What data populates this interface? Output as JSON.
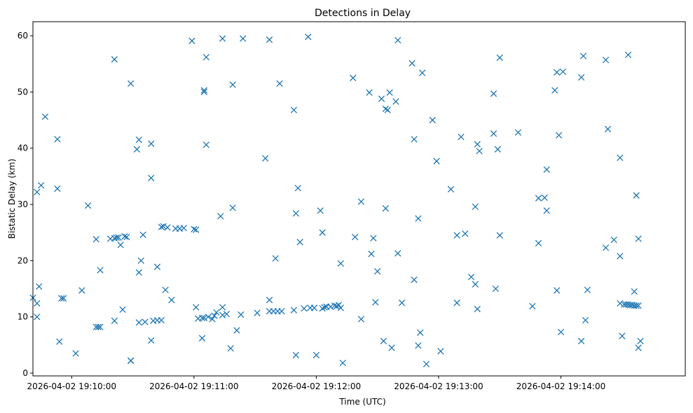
{
  "chart_data": {
    "type": "scatter",
    "title": "Detections in Delay",
    "xlabel": "Time (UTC)",
    "ylabel": "Bistatic Delay (km)",
    "x_ticks": [
      "2026-04-02 19:10:00",
      "2026-04-02 19:11:00",
      "2026-04-02 19:12:00",
      "2026-04-02 19:13:00",
      "2026-04-02 19:14:00"
    ],
    "y_ticks": [
      "0",
      "10",
      "20",
      "30",
      "40",
      "50",
      "60"
    ],
    "xlim": [
      "2026-04-02 19:09:41",
      "2026-04-02 19:15:01"
    ],
    "ylim": [
      -0.5,
      62.5
    ],
    "marker": "x",
    "color": "#1f77b4",
    "grid": false,
    "series": [
      {
        "points": [
          [
            "2026-04-02 19:09:41",
            13.4
          ],
          [
            "2026-04-02 19:09:43",
            32.2
          ],
          [
            "2026-04-02 19:09:43",
            12.4
          ],
          [
            "2026-04-02 19:09:43",
            10.0
          ],
          [
            "2026-04-02 19:09:44",
            15.4
          ],
          [
            "2026-04-02 19:09:45",
            33.4
          ],
          [
            "2026-04-02 19:09:47",
            45.6
          ],
          [
            "2026-04-02 19:09:53",
            41.6
          ],
          [
            "2026-04-02 19:09:53",
            32.8
          ],
          [
            "2026-04-02 19:09:54",
            5.6
          ],
          [
            "2026-04-02 19:09:55",
            13.3
          ],
          [
            "2026-04-02 19:09:56",
            13.3
          ],
          [
            "2026-04-02 19:10:02",
            3.5
          ],
          [
            "2026-04-02 19:10:05",
            14.7
          ],
          [
            "2026-04-02 19:10:08",
            29.8
          ],
          [
            "2026-04-02 19:10:12",
            23.8
          ],
          [
            "2026-04-02 19:10:12",
            8.2
          ],
          [
            "2026-04-02 19:10:13",
            8.2
          ],
          [
            "2026-04-02 19:10:14",
            8.2
          ],
          [
            "2026-04-02 19:10:14",
            18.3
          ],
          [
            "2026-04-02 19:10:19",
            23.9
          ],
          [
            "2026-04-02 19:10:21",
            24.0
          ],
          [
            "2026-04-02 19:10:22",
            24.1
          ],
          [
            "2026-04-02 19:10:23",
            24.1
          ],
          [
            "2026-04-02 19:10:24",
            22.8
          ],
          [
            "2026-04-02 19:10:26",
            24.3
          ],
          [
            "2026-04-02 19:10:27",
            24.2
          ],
          [
            "2026-04-02 19:10:21",
            55.8
          ],
          [
            "2026-04-02 19:10:21",
            9.3
          ],
          [
            "2026-04-02 19:10:25",
            11.3
          ],
          [
            "2026-04-02 19:10:29",
            2.2
          ],
          [
            "2026-04-02 19:10:29",
            2.2
          ],
          [
            "2026-04-02 19:10:29",
            51.5
          ],
          [
            "2026-04-02 19:10:32",
            39.8
          ],
          [
            "2026-04-02 19:10:33",
            41.5
          ],
          [
            "2026-04-02 19:10:33",
            17.9
          ],
          [
            "2026-04-02 19:10:34",
            20.0
          ],
          [
            "2026-04-02 19:10:35",
            24.6
          ],
          [
            "2026-04-02 19:10:33",
            9.0
          ],
          [
            "2026-04-02 19:10:36",
            9.1
          ],
          [
            "2026-04-02 19:10:39",
            40.8
          ],
          [
            "2026-04-02 19:10:39",
            34.7
          ],
          [
            "2026-04-02 19:10:39",
            5.8
          ],
          [
            "2026-04-02 19:10:40",
            9.3
          ],
          [
            "2026-04-02 19:10:42",
            9.4
          ],
          [
            "2026-04-02 19:10:44",
            9.4
          ],
          [
            "2026-04-02 19:10:42",
            18.9
          ],
          [
            "2026-04-02 19:10:44",
            26.0
          ],
          [
            "2026-04-02 19:10:45",
            26.1
          ],
          [
            "2026-04-02 19:10:47",
            25.9
          ],
          [
            "2026-04-02 19:10:46",
            14.8
          ],
          [
            "2026-04-02 19:10:49",
            13.0
          ],
          [
            "2026-04-02 19:10:51",
            25.7
          ],
          [
            "2026-04-02 19:10:53",
            25.7
          ],
          [
            "2026-04-02 19:10:55",
            25.8
          ],
          [
            "2026-04-02 19:10:59",
            59.1
          ],
          [
            "2026-04-02 19:11:00",
            25.6
          ],
          [
            "2026-04-02 19:11:01",
            25.5
          ],
          [
            "2026-04-02 19:11:01",
            11.7
          ],
          [
            "2026-04-02 19:11:02",
            9.7
          ],
          [
            "2026-04-02 19:11:04",
            9.8
          ],
          [
            "2026-04-02 19:11:05",
            9.8
          ],
          [
            "2026-04-02 19:11:04",
            6.2
          ],
          [
            "2026-04-02 19:11:05",
            50.3
          ],
          [
            "2026-04-02 19:11:05",
            50.0
          ],
          [
            "2026-04-02 19:11:06",
            56.2
          ],
          [
            "2026-04-02 19:11:06",
            40.6
          ],
          [
            "2026-04-02 19:11:07",
            10.0
          ],
          [
            "2026-04-02 19:11:09",
            9.6
          ],
          [
            "2026-04-02 19:11:10",
            10.2
          ],
          [
            "2026-04-02 19:11:11",
            10.8
          ],
          [
            "2026-04-02 19:11:13",
            27.9
          ],
          [
            "2026-04-02 19:11:14",
            11.7
          ],
          [
            "2026-04-02 19:11:14",
            10.3
          ],
          [
            "2026-04-02 19:11:16",
            10.5
          ],
          [
            "2026-04-02 19:11:14",
            59.5
          ],
          [
            "2026-04-02 19:11:19",
            51.3
          ],
          [
            "2026-04-02 19:11:19",
            29.4
          ],
          [
            "2026-04-02 19:11:18",
            4.4
          ],
          [
            "2026-04-02 19:11:21",
            7.6
          ],
          [
            "2026-04-02 19:11:23",
            10.4
          ],
          [
            "2026-04-02 19:11:24",
            59.5
          ],
          [
            "2026-04-02 19:11:31",
            10.7
          ],
          [
            "2026-04-02 19:11:35",
            38.2
          ],
          [
            "2026-04-02 19:11:37",
            59.3
          ],
          [
            "2026-04-02 19:11:37",
            13.0
          ],
          [
            "2026-04-02 19:11:37",
            11.0
          ],
          [
            "2026-04-02 19:11:39",
            11.0
          ],
          [
            "2026-04-02 19:11:41",
            11.0
          ],
          [
            "2026-04-02 19:11:40",
            20.4
          ],
          [
            "2026-04-02 19:11:42",
            51.5
          ],
          [
            "2026-04-02 19:11:43",
            11.0
          ],
          [
            "2026-04-02 19:11:49",
            46.8
          ],
          [
            "2026-04-02 19:11:49",
            11.2
          ],
          [
            "2026-04-02 19:11:50",
            28.4
          ],
          [
            "2026-04-02 19:11:50",
            3.2
          ],
          [
            "2026-04-02 19:11:51",
            32.9
          ],
          [
            "2026-04-02 19:11:52",
            23.3
          ],
          [
            "2026-04-02 19:11:54",
            11.5
          ],
          [
            "2026-04-02 19:11:56",
            59.8
          ],
          [
            "2026-04-02 19:11:57",
            11.6
          ],
          [
            "2026-04-02 19:11:59",
            11.6
          ],
          [
            "2026-04-02 19:12:00",
            3.2
          ],
          [
            "2026-04-02 19:12:02",
            28.9
          ],
          [
            "2026-04-02 19:12:03",
            25.0
          ],
          [
            "2026-04-02 19:12:03",
            11.5
          ],
          [
            "2026-04-02 19:12:04",
            11.7
          ],
          [
            "2026-04-02 19:12:05",
            11.8
          ],
          [
            "2026-04-02 19:12:07",
            11.8
          ],
          [
            "2026-04-02 19:12:09",
            12.0
          ],
          [
            "2026-04-02 19:12:10",
            11.9
          ],
          [
            "2026-04-02 19:12:11",
            12.1
          ],
          [
            "2026-04-02 19:12:12",
            11.6
          ],
          [
            "2026-04-02 19:12:12",
            19.5
          ],
          [
            "2026-04-02 19:12:13",
            1.8
          ],
          [
            "2026-04-02 19:12:18",
            52.5
          ],
          [
            "2026-04-02 19:12:19",
            24.2
          ],
          [
            "2026-04-02 19:12:22",
            9.6
          ],
          [
            "2026-04-02 19:12:22",
            30.5
          ],
          [
            "2026-04-02 19:12:26",
            49.9
          ],
          [
            "2026-04-02 19:12:27",
            21.2
          ],
          [
            "2026-04-02 19:12:28",
            24.0
          ],
          [
            "2026-04-02 19:12:29",
            12.6
          ],
          [
            "2026-04-02 19:12:30",
            18.1
          ],
          [
            "2026-04-02 19:12:32",
            48.8
          ],
          [
            "2026-04-02 19:12:33",
            5.7
          ],
          [
            "2026-04-02 19:12:34",
            29.3
          ],
          [
            "2026-04-02 19:12:34",
            47.0
          ],
          [
            "2026-04-02 19:12:35",
            46.8
          ],
          [
            "2026-04-02 19:12:36",
            49.9
          ],
          [
            "2026-04-02 19:12:37",
            4.5
          ],
          [
            "2026-04-02 19:12:39",
            48.3
          ],
          [
            "2026-04-02 19:12:40",
            59.2
          ],
          [
            "2026-04-02 19:12:40",
            21.3
          ],
          [
            "2026-04-02 19:12:42",
            12.5
          ],
          [
            "2026-04-02 19:12:47",
            55.1
          ],
          [
            "2026-04-02 19:12:48",
            16.6
          ],
          [
            "2026-04-02 19:12:48",
            41.6
          ],
          [
            "2026-04-02 19:12:50",
            27.5
          ],
          [
            "2026-04-02 19:12:50",
            4.9
          ],
          [
            "2026-04-02 19:12:51",
            7.2
          ],
          [
            "2026-04-02 19:12:52",
            53.4
          ],
          [
            "2026-04-02 19:12:54",
            1.6
          ],
          [
            "2026-04-02 19:12:57",
            45.0
          ],
          [
            "2026-04-02 19:12:59",
            37.7
          ],
          [
            "2026-04-02 19:13:01",
            3.9
          ],
          [
            "2026-04-02 19:13:06",
            32.7
          ],
          [
            "2026-04-02 19:13:09",
            12.5
          ],
          [
            "2026-04-02 19:13:09",
            24.5
          ],
          [
            "2026-04-02 19:13:11",
            42.0
          ],
          [
            "2026-04-02 19:13:13",
            24.8
          ],
          [
            "2026-04-02 19:13:16",
            17.1
          ],
          [
            "2026-04-02 19:13:18",
            29.6
          ],
          [
            "2026-04-02 19:13:18",
            15.8
          ],
          [
            "2026-04-02 19:13:19",
            11.4
          ],
          [
            "2026-04-02 19:13:19",
            40.7
          ],
          [
            "2026-04-02 19:13:20",
            39.5
          ],
          [
            "2026-04-02 19:13:27",
            49.7
          ],
          [
            "2026-04-02 19:13:27",
            42.6
          ],
          [
            "2026-04-02 19:13:28",
            15.0
          ],
          [
            "2026-04-02 19:13:29",
            39.8
          ],
          [
            "2026-04-02 19:13:30",
            56.1
          ],
          [
            "2026-04-02 19:13:30",
            24.5
          ],
          [
            "2026-04-02 19:13:39",
            42.8
          ],
          [
            "2026-04-02 19:13:46",
            11.9
          ],
          [
            "2026-04-02 19:13:49",
            23.1
          ],
          [
            "2026-04-02 19:13:49",
            31.1
          ],
          [
            "2026-04-02 19:13:52",
            31.2
          ],
          [
            "2026-04-02 19:13:53",
            36.2
          ],
          [
            "2026-04-02 19:13:53",
            28.9
          ],
          [
            "2026-04-02 19:13:57",
            50.3
          ],
          [
            "2026-04-02 19:13:58",
            53.5
          ],
          [
            "2026-04-02 19:13:58",
            14.7
          ],
          [
            "2026-04-02 19:13:59",
            42.3
          ],
          [
            "2026-04-02 19:14:00",
            7.3
          ],
          [
            "2026-04-02 19:14:01",
            53.6
          ],
          [
            "2026-04-02 19:14:10",
            52.6
          ],
          [
            "2026-04-02 19:14:10",
            5.7
          ],
          [
            "2026-04-02 19:14:11",
            56.4
          ],
          [
            "2026-04-02 19:14:12",
            9.4
          ],
          [
            "2026-04-02 19:14:13",
            14.8
          ],
          [
            "2026-04-02 19:14:22",
            55.7
          ],
          [
            "2026-04-02 19:14:22",
            22.3
          ],
          [
            "2026-04-02 19:14:23",
            43.4
          ],
          [
            "2026-04-02 19:14:26",
            23.7
          ],
          [
            "2026-04-02 19:14:29",
            20.8
          ],
          [
            "2026-04-02 19:14:29",
            38.3
          ],
          [
            "2026-04-02 19:14:29",
            12.4
          ],
          [
            "2026-04-02 19:14:30",
            6.6
          ],
          [
            "2026-04-02 19:14:31",
            12.2
          ],
          [
            "2026-04-02 19:14:32",
            12.2
          ],
          [
            "2026-04-02 19:14:33",
            12.2
          ],
          [
            "2026-04-02 19:14:34",
            12.1
          ],
          [
            "2026-04-02 19:14:35",
            12.1
          ],
          [
            "2026-04-02 19:14:36",
            12.0
          ],
          [
            "2026-04-02 19:14:37",
            12.0
          ],
          [
            "2026-04-02 19:14:38",
            12.0
          ],
          [
            "2026-04-02 19:14:33",
            56.6
          ],
          [
            "2026-04-02 19:14:36",
            14.5
          ],
          [
            "2026-04-02 19:14:37",
            31.6
          ],
          [
            "2026-04-02 19:14:38",
            23.9
          ],
          [
            "2026-04-02 19:14:38",
            4.5
          ],
          [
            "2026-04-02 19:14:39",
            5.7
          ]
        ]
      }
    ]
  }
}
